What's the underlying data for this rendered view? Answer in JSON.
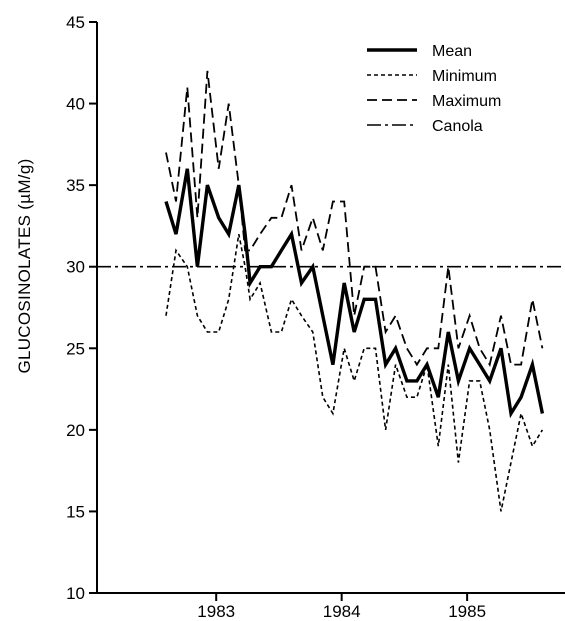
{
  "chart_data": {
    "type": "line",
    "title": "",
    "xlabel": "",
    "ylabel": "GLUCOSINOLATES (µM/g)",
    "xlim": [
      1982.05,
      1985.78
    ],
    "ylim": [
      10,
      45
    ],
    "x_ticks": [
      1983,
      1984,
      1985
    ],
    "x_tick_labels": [
      "1983",
      "1984",
      "1985"
    ],
    "y_ticks": [
      10,
      15,
      20,
      25,
      30,
      35,
      40,
      45
    ],
    "y_tick_labels": [
      "10",
      "15",
      "20",
      "25",
      "30",
      "35",
      "40",
      "45"
    ],
    "grid": false,
    "legend_position": "top-right",
    "series": [
      {
        "name": "Mean",
        "style": "solid-thick",
        "color": "#000000",
        "x": [
          1982.6,
          1982.68,
          1982.77,
          1982.85,
          1982.93,
          1983.02,
          1983.1,
          1983.18,
          1983.23,
          1983.27,
          1983.35,
          1983.44,
          1983.52,
          1983.6,
          1983.68,
          1983.77,
          1983.85,
          1983.93,
          1984.02,
          1984.1,
          1984.18,
          1984.27,
          1984.35,
          1984.43,
          1984.52,
          1984.6,
          1984.68,
          1984.77,
          1984.85,
          1984.93,
          1985.02,
          1985.1,
          1985.18,
          1985.27,
          1985.35,
          1985.43,
          1985.52,
          1985.6
        ],
        "y": [
          34,
          32,
          36,
          30,
          35,
          33,
          32,
          35,
          32,
          29,
          30,
          30,
          31,
          32,
          29,
          30,
          27,
          24,
          29,
          26,
          28,
          28,
          24,
          25,
          23,
          23,
          24,
          22,
          26,
          23,
          25,
          24,
          23,
          25,
          21,
          22,
          24,
          21
        ]
      },
      {
        "name": "Minimum",
        "style": "short-dash",
        "color": "#000000",
        "x": [
          1982.6,
          1982.68,
          1982.77,
          1982.85,
          1982.93,
          1983.02,
          1983.1,
          1983.18,
          1983.23,
          1983.27,
          1983.35,
          1983.44,
          1983.52,
          1983.6,
          1983.68,
          1983.77,
          1983.85,
          1983.93,
          1984.02,
          1984.1,
          1984.18,
          1984.27,
          1984.35,
          1984.43,
          1984.52,
          1984.6,
          1984.68,
          1984.77,
          1984.85,
          1984.93,
          1985.02,
          1985.1,
          1985.18,
          1985.27,
          1985.35,
          1985.43,
          1985.52,
          1985.6
        ],
        "y": [
          27,
          31,
          30,
          27,
          26,
          26,
          28,
          32,
          30,
          28,
          29,
          26,
          26,
          28,
          27,
          26,
          22,
          21,
          25,
          23,
          25,
          25,
          20,
          24,
          22,
          22,
          24,
          19,
          24,
          18,
          23,
          23,
          20,
          15,
          18,
          21,
          19,
          20
        ]
      },
      {
        "name": "Maximum",
        "style": "long-dash",
        "color": "#000000",
        "x": [
          1982.6,
          1982.68,
          1982.77,
          1982.85,
          1982.93,
          1983.02,
          1983.1,
          1983.18,
          1983.23,
          1983.27,
          1983.35,
          1983.44,
          1983.52,
          1983.6,
          1983.68,
          1983.77,
          1983.85,
          1983.93,
          1984.02,
          1984.1,
          1984.18,
          1984.27,
          1984.35,
          1984.43,
          1984.52,
          1984.6,
          1984.68,
          1984.77,
          1984.85,
          1984.93,
          1985.02,
          1985.1,
          1985.18,
          1985.27,
          1985.35,
          1985.43,
          1985.52,
          1985.6
        ],
        "y": [
          37,
          34,
          41,
          33,
          42,
          36,
          40,
          35,
          31,
          31,
          32,
          33,
          33,
          35,
          31,
          33,
          31,
          34,
          34,
          27,
          30,
          30,
          26,
          27,
          25,
          24,
          25,
          25,
          30,
          25,
          27,
          25,
          24,
          27,
          24,
          24,
          28,
          25
        ]
      },
      {
        "name": "Canola",
        "style": "dash-dot",
        "color": "#000000",
        "x": [
          1982.05,
          1985.78
        ],
        "y": [
          30,
          30
        ]
      }
    ]
  }
}
